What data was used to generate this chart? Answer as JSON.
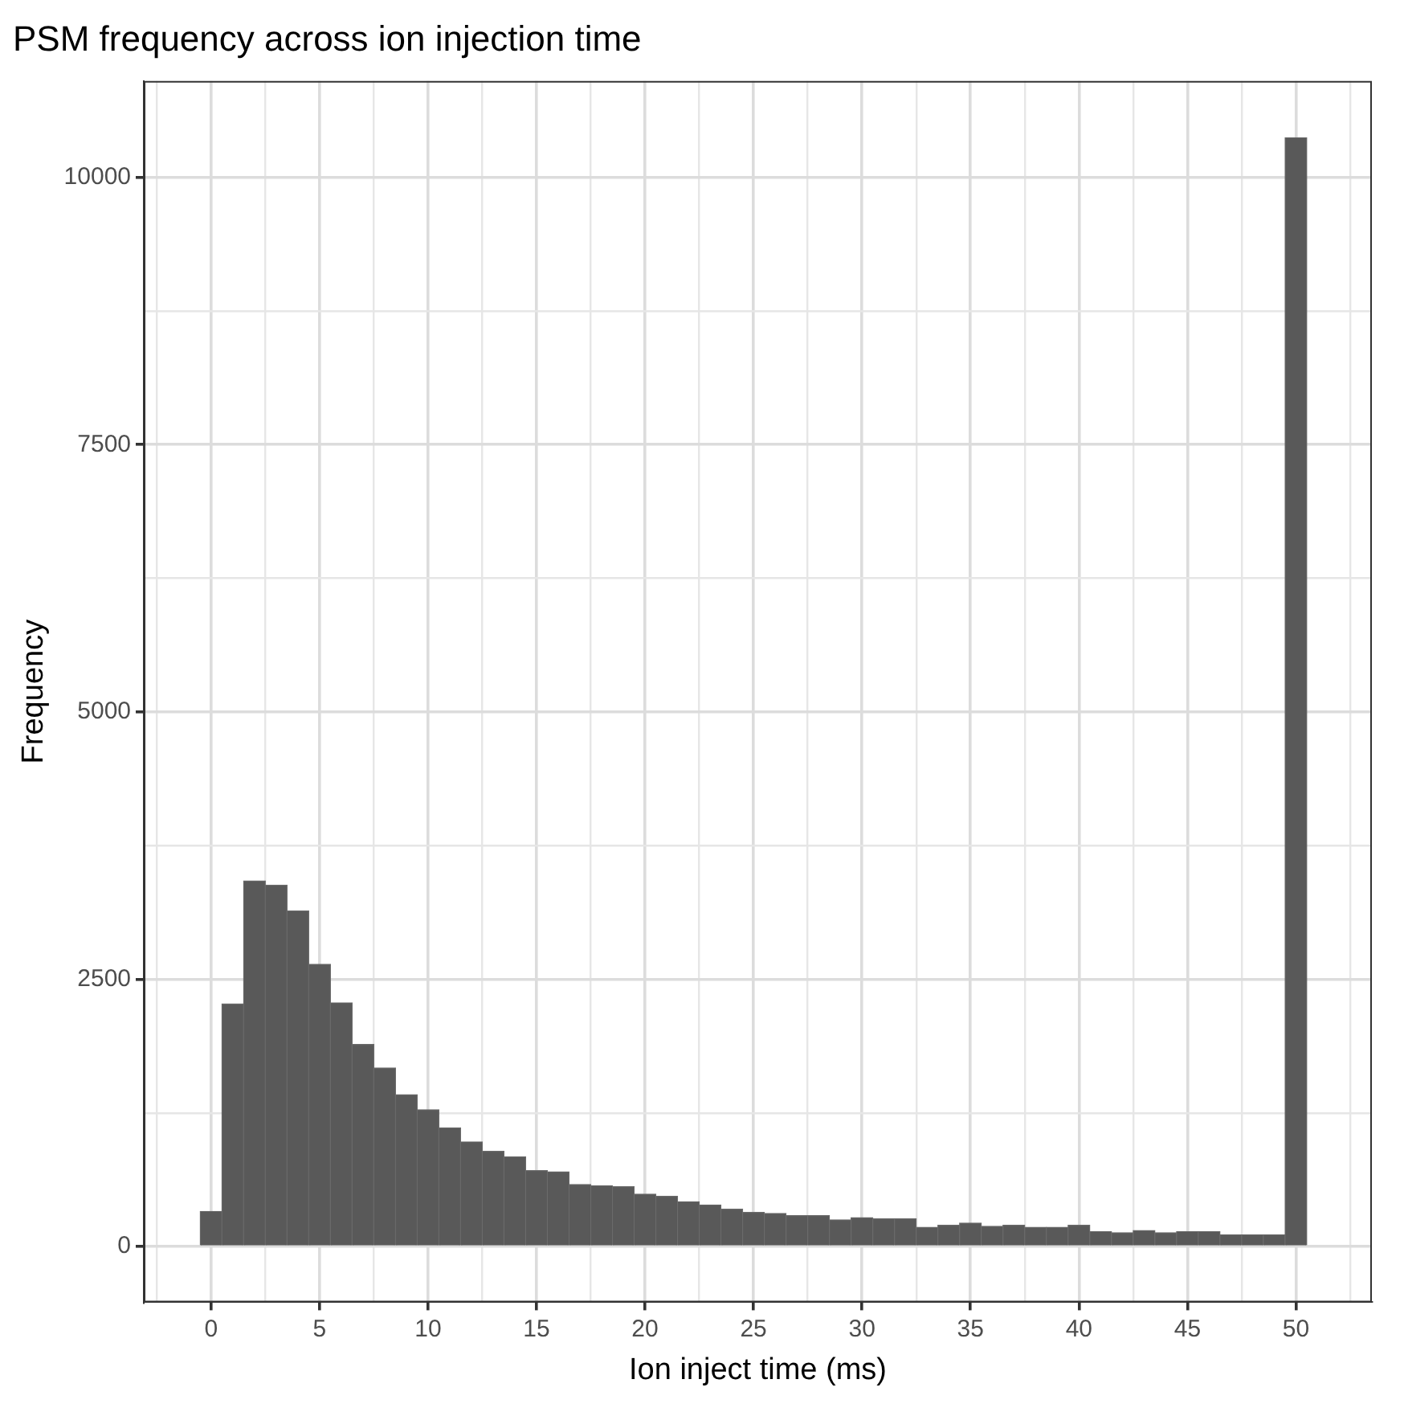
{
  "chart_data": {
    "type": "histogram",
    "title": "PSM frequency across ion injection time",
    "xlabel": "Ion inject time (ms)",
    "ylabel": "Frequency",
    "bins": [
      -0.5,
      0.5,
      1.5,
      2.5,
      3.5,
      4.5,
      5.5,
      6.5,
      7.5,
      8.5,
      9.5,
      10.5,
      11.5,
      12.5,
      13.5,
      14.5,
      15.5,
      16.5,
      17.5,
      18.5,
      19.5,
      20.5,
      21.5,
      22.5,
      23.5,
      24.5,
      25.5,
      26.5,
      27.5,
      28.5,
      29.5,
      30.5,
      31.5,
      32.5,
      33.5,
      34.5,
      35.5,
      36.5,
      37.5,
      38.5,
      39.5,
      40.5,
      41.5,
      42.5,
      43.5,
      44.5,
      45.5,
      46.5,
      47.5,
      48.5,
      49.5,
      50.5
    ],
    "values": [
      330,
      2270,
      3420,
      3380,
      3140,
      2640,
      2280,
      1890,
      1670,
      1420,
      1280,
      1110,
      980,
      890,
      840,
      710,
      700,
      580,
      570,
      560,
      490,
      470,
      420,
      390,
      350,
      320,
      310,
      290,
      290,
      250,
      270,
      260,
      260,
      180,
      200,
      220,
      190,
      200,
      180,
      180,
      200,
      140,
      130,
      150,
      130,
      140,
      140,
      110,
      110,
      110,
      10370
    ],
    "color": "#595959",
    "xlim": [
      -3.1,
      53.5
    ],
    "ylim": [
      -520,
      10900
    ],
    "xticks": [
      {
        "value": -2.5,
        "label": null
      },
      0,
      {
        "value": 2.5,
        "label": null
      },
      5,
      {
        "value": 7.5,
        "label": null
      },
      10,
      {
        "value": 12.5,
        "label": null
      },
      15,
      {
        "value": 17.5,
        "label": null
      },
      20,
      {
        "value": 22.5,
        "label": null
      },
      25,
      {
        "value": 27.5,
        "label": null
      },
      30,
      {
        "value": 32.5,
        "label": null
      },
      35,
      {
        "value": 37.5,
        "label": null
      },
      40,
      {
        "value": 42.5,
        "label": null
      },
      45,
      {
        "value": 47.5,
        "label": null
      },
      50,
      {
        "value": 52.5,
        "label": null
      }
    ],
    "yticks": [
      0,
      {
        "value": 1250,
        "label": null
      },
      2500,
      {
        "value": 3750,
        "label": null
      },
      5000,
      {
        "value": 6250,
        "label": null
      },
      7500,
      {
        "value": 8750,
        "label": null
      },
      10000
    ],
    "grid": true,
    "legend": false
  }
}
